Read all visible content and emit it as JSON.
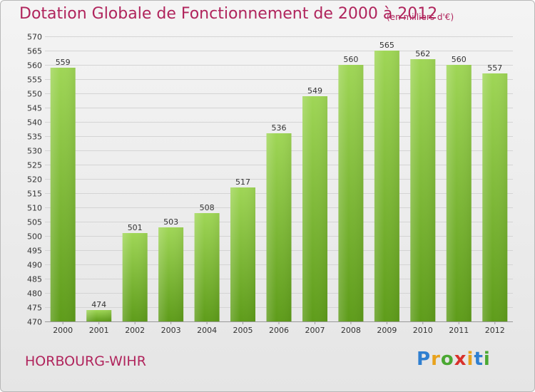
{
  "header": {
    "title": "Dotation Globale de Fonctionnement de 2000 à 2012",
    "subtitle": "(en milliers d'€)"
  },
  "footer": {
    "city": "HORBOURG-WIHR",
    "logo": "Proxiti"
  },
  "chart_data": {
    "type": "bar",
    "title": "Dotation Globale de Fonctionnement de 2000 à 2012",
    "subtitle": "(en milliers d'€)",
    "xlabel": "",
    "ylabel": "",
    "categories": [
      "2000",
      "2001",
      "2002",
      "2003",
      "2004",
      "2005",
      "2006",
      "2007",
      "2008",
      "2009",
      "2010",
      "2011",
      "2012"
    ],
    "values": [
      559,
      474,
      501,
      503,
      508,
      517,
      536,
      549,
      560,
      565,
      562,
      560,
      557
    ],
    "ylim": [
      470,
      570
    ],
    "ytick_step": 5,
    "grid": "horizontal",
    "legend": "none",
    "colors": {
      "bar_top": "#9fd656",
      "bar_bottom": "#5e9c1a",
      "grid": "#d4d4d4",
      "text": "#333333"
    }
  }
}
